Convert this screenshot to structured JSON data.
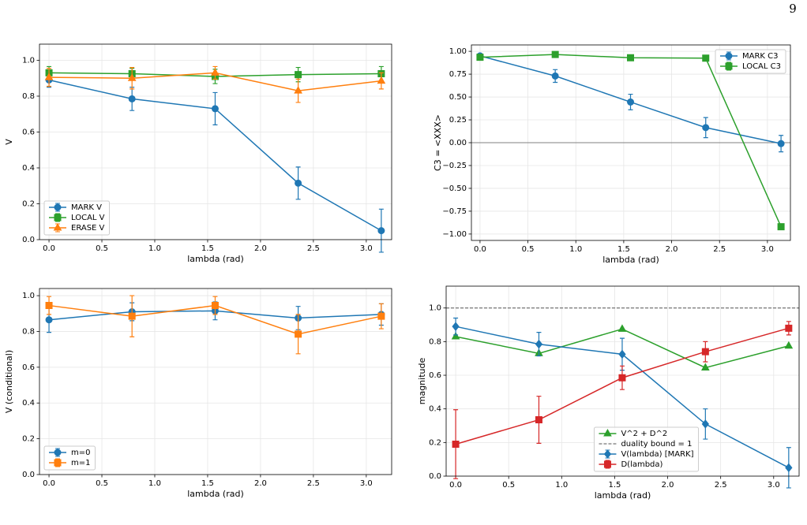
{
  "page": {
    "number": "9"
  },
  "chart_data": [
    {
      "type": "line",
      "xlabel": "lambda (rad)",
      "ylabel": "V",
      "x": [
        0,
        0.785,
        1.571,
        2.356,
        3.142
      ],
      "xlim": [
        -0.09,
        3.24
      ],
      "ylim": [
        0,
        1.09
      ],
      "xticks": [
        {
          "value": 0,
          "label": "0.0"
        },
        0.5,
        {
          "value": 1,
          "label": "1.0"
        },
        1.5,
        {
          "value": 2,
          "label": "2.0"
        },
        2.5,
        {
          "value": 3,
          "label": "3.0"
        }
      ],
      "yticks": [
        {
          "value": 0,
          "label": "0.0"
        },
        0.2,
        0.4,
        0.6,
        0.8,
        {
          "value": 1,
          "label": "1.0"
        }
      ],
      "grid": true,
      "legend": "lower left",
      "series": [
        {
          "name": "MARK V",
          "color": "#1f77b4",
          "marker": "circle",
          "values": [
            0.89,
            0.785,
            0.73,
            0.315,
            0.05
          ],
          "errors": [
            0.04,
            0.065,
            0.09,
            0.09,
            0.12
          ]
        },
        {
          "name": "LOCAL V",
          "color": "#2ca02c",
          "marker": "square",
          "values": [
            0.93,
            0.925,
            0.91,
            0.92,
            0.925
          ],
          "errors": [
            0.035,
            0.03,
            0.04,
            0.04,
            0.04
          ]
        },
        {
          "name": "ERASE V",
          "color": "#ff7f0e",
          "marker": "triangle",
          "values": [
            0.905,
            0.9,
            0.93,
            0.83,
            0.885
          ],
          "errors": [
            0.05,
            0.06,
            0.035,
            0.065,
            0.045
          ]
        }
      ]
    },
    {
      "type": "line",
      "xlabel": "lambda (rad)",
      "ylabel": "C3 = <XXX>",
      "x": [
        0,
        0.785,
        1.571,
        2.356,
        3.142
      ],
      "xlim": [
        -0.09,
        3.24
      ],
      "ylim": [
        -1.07,
        1.07
      ],
      "xticks": [
        {
          "value": 0,
          "label": "0.0"
        },
        0.5,
        {
          "value": 1,
          "label": "1.0"
        },
        1.5,
        {
          "value": 2,
          "label": "2.0"
        },
        2.5,
        {
          "value": 3,
          "label": "3.0"
        }
      ],
      "yticks": [
        {
          "value": -1,
          "label": "−1.00"
        },
        {
          "value": -0.75,
          "label": "−0.75"
        },
        {
          "value": -0.5,
          "label": "−0.50"
        },
        {
          "value": -0.25,
          "label": "−0.25"
        },
        {
          "value": 0,
          "label": "0.00"
        },
        0.25,
        {
          "value": 0.5,
          "label": "0.50"
        },
        0.75,
        {
          "value": 1,
          "label": "1.00"
        }
      ],
      "grid": true,
      "legend": "upper right",
      "hlines": [
        {
          "value": 0,
          "color": "#808080",
          "style": "solid"
        }
      ],
      "series": [
        {
          "name": "MARK C3",
          "color": "#1f77b4",
          "marker": "circle",
          "values": [
            0.95,
            0.73,
            0.445,
            0.165,
            -0.01
          ],
          "errors": [
            0.02,
            0.07,
            0.085,
            0.11,
            0.09
          ]
        },
        {
          "name": "LOCAL C3",
          "color": "#2ca02c",
          "marker": "square",
          "values": [
            0.935,
            0.965,
            0.93,
            0.925,
            -0.92
          ],
          "errors": [
            0.03,
            0.015,
            0.03,
            0.025,
            0.03
          ]
        }
      ]
    },
    {
      "type": "line",
      "xlabel": "lambda (rad)",
      "ylabel": "V (conditional)",
      "x": [
        0,
        0.785,
        1.571,
        2.356,
        3.142
      ],
      "xlim": [
        -0.09,
        3.24
      ],
      "ylim": [
        0,
        1.04
      ],
      "xticks": [
        {
          "value": 0,
          "label": "0.0"
        },
        0.5,
        {
          "value": 1,
          "label": "1.0"
        },
        1.5,
        {
          "value": 2,
          "label": "2.0"
        },
        2.5,
        {
          "value": 3,
          "label": "3.0"
        }
      ],
      "yticks": [
        {
          "value": 0,
          "label": "0.0"
        },
        0.2,
        0.4,
        0.6,
        0.8,
        {
          "value": 1,
          "label": "1.0"
        }
      ],
      "grid": true,
      "legend": "lower left",
      "series": [
        {
          "name": "m=0",
          "color": "#1f77b4",
          "marker": "circle",
          "values": [
            0.865,
            0.91,
            0.915,
            0.875,
            0.895
          ],
          "errors": [
            0.07,
            0.05,
            0.05,
            0.065,
            0.06
          ]
        },
        {
          "name": "m=1",
          "color": "#ff7f0e",
          "marker": "square",
          "values": [
            0.945,
            0.885,
            0.945,
            0.785,
            0.885
          ],
          "errors": [
            0.05,
            0.115,
            0.05,
            0.11,
            0.07
          ]
        }
      ]
    },
    {
      "type": "line",
      "xlabel": "lambda (rad)",
      "ylabel": "magnitude",
      "x": [
        0,
        0.785,
        1.571,
        2.356,
        3.142
      ],
      "xlim": [
        -0.09,
        3.24
      ],
      "ylim": [
        0,
        1.13
      ],
      "xticks": [
        {
          "value": 0,
          "label": "0.0"
        },
        0.5,
        {
          "value": 1,
          "label": "1.0"
        },
        1.5,
        {
          "value": 2,
          "label": "2.0"
        },
        2.5,
        {
          "value": 3,
          "label": "3.0"
        }
      ],
      "yticks": [
        {
          "value": 0,
          "label": "0.0"
        },
        0.2,
        0.4,
        0.6,
        0.8,
        {
          "value": 1,
          "label": "1.0"
        }
      ],
      "grid": true,
      "legend": "lower center",
      "hlines": [
        {
          "name": "duality bound = 1",
          "value": 1,
          "color": "#555555",
          "style": "dashed"
        }
      ],
      "series": [
        {
          "name": "V^2 + D^2",
          "color": "#2ca02c",
          "marker": "triangle",
          "values": [
            0.83,
            0.73,
            0.875,
            0.645,
            0.775
          ]
        },
        {
          "name": "V(lambda) [MARK]",
          "color": "#1f77b4",
          "marker": "diamond",
          "values": [
            0.89,
            0.785,
            0.725,
            0.31,
            0.05
          ],
          "errors": [
            0.05,
            0.07,
            0.095,
            0.09,
            0.12
          ]
        },
        {
          "name": "D(lambda)",
          "color": "#d62728",
          "marker": "square",
          "values": [
            0.19,
            0.335,
            0.585,
            0.74,
            0.88
          ],
          "errors": [
            0.205,
            0.14,
            0.07,
            0.06,
            0.04
          ]
        }
      ]
    }
  ]
}
